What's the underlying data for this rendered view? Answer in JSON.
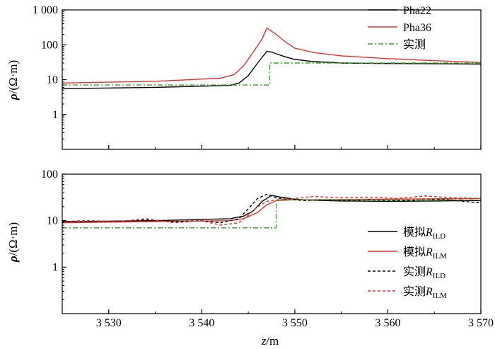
{
  "chart_data": [
    {
      "type": "line",
      "ylabel": "ρ/(Ω·m)",
      "yscale": "log",
      "ylim": [
        0.1,
        1000
      ],
      "yticks": [
        1,
        10,
        100,
        1000
      ],
      "ytick_labels": [
        "1",
        "10",
        "100",
        "1 000"
      ],
      "xlim": [
        3525,
        3570
      ],
      "legend_position": "top-right",
      "series": [
        {
          "name": "Pha22",
          "color": "#000000",
          "dash": "solid",
          "x": [
            3525,
            3535,
            3543,
            3544,
            3545,
            3546,
            3547,
            3547.5,
            3548,
            3549,
            3550,
            3552,
            3555,
            3560,
            3565,
            3570
          ],
          "y": [
            5.5,
            6,
            6.8,
            8,
            13,
            30,
            65,
            62,
            55,
            45,
            38,
            33,
            30,
            29,
            28.5,
            28
          ]
        },
        {
          "name": "Pha36",
          "color": "#e8312f",
          "dash": "solid",
          "x": [
            3525,
            3535,
            3542,
            3543.5,
            3544.5,
            3545.5,
            3546.5,
            3547,
            3548,
            3549,
            3550,
            3552,
            3555,
            3560,
            3565,
            3570
          ],
          "y": [
            8,
            9,
            11,
            14,
            25,
            60,
            150,
            300,
            200,
            120,
            80,
            60,
            48,
            40,
            35,
            31
          ]
        },
        {
          "name": "实测",
          "color": "#33aa22",
          "dash": "dashdot",
          "x": [
            3525,
            3547.3,
            3547.3,
            3570
          ],
          "y": [
            7,
            7,
            30,
            30
          ]
        }
      ]
    },
    {
      "type": "line",
      "xlabel": "z/m",
      "ylabel": "ρ/(Ω·m)",
      "yscale": "log",
      "ylim": [
        0.1,
        100
      ],
      "yticks": [
        1,
        10,
        100
      ],
      "ytick_labels": [
        "1",
        "10",
        "100"
      ],
      "xlim": [
        3525,
        3570
      ],
      "xticks": [
        3530,
        3540,
        3550,
        3560,
        3570
      ],
      "xtick_labels": [
        "3 530",
        "3 540",
        "3 550",
        "3 560",
        "3 570"
      ],
      "legend_position": "bottom-right",
      "series": [
        {
          "name_main": "模拟",
          "name_var": "R",
          "name_sub": "ILD",
          "color": "#000000",
          "dash": "solid",
          "x": [
            3525,
            3535,
            3543,
            3544.5,
            3545.5,
            3546.5,
            3547.5,
            3548.5,
            3550,
            3552,
            3555,
            3560,
            3565,
            3570
          ],
          "y": [
            9.5,
            10,
            11,
            12.5,
            16,
            26,
            35,
            32,
            29,
            27.5,
            26.5,
            26,
            26.5,
            27
          ]
        },
        {
          "name_main": "模拟",
          "name_var": "R",
          "name_sub": "ILM",
          "color": "#e8312f",
          "dash": "solid",
          "x": [
            3525,
            3535,
            3543,
            3544.5,
            3546,
            3547,
            3548,
            3550,
            3555,
            3560,
            3565,
            3570
          ],
          "y": [
            9,
            9.5,
            10,
            11,
            15,
            22,
            27,
            28,
            28.5,
            29,
            29.5,
            30
          ]
        },
        {
          "name_main": "实测",
          "name_var": "R",
          "name_sub": "ILD",
          "color": "#000000",
          "dash": "dashed",
          "x": [
            3525,
            3528,
            3531,
            3534,
            3537,
            3540,
            3542,
            3544,
            3545,
            3546,
            3547,
            3548,
            3549,
            3551,
            3553,
            3555,
            3558,
            3561,
            3564,
            3566,
            3568,
            3569,
            3570
          ],
          "y": [
            9.5,
            10,
            9.5,
            10.5,
            9.5,
            10,
            9,
            11,
            18,
            30,
            37,
            31,
            29,
            27,
            28,
            27,
            28,
            27,
            28,
            29,
            26,
            25,
            24
          ]
        },
        {
          "name_main": "实测",
          "name_var": "R",
          "name_sub": "ILM",
          "color": "#e8312f",
          "dash": "dashed",
          "x": [
            3525,
            3528,
            3531,
            3534,
            3537,
            3540,
            3542,
            3543,
            3544,
            3545,
            3546,
            3547,
            3548,
            3550,
            3552,
            3555,
            3558,
            3561,
            3564,
            3567,
            3570
          ],
          "y": [
            9,
            10,
            9.5,
            11,
            9,
            10,
            8,
            8.5,
            9,
            13,
            20,
            26,
            28,
            30,
            33,
            31,
            32,
            30,
            34,
            31,
            30
          ]
        },
        {
          "name": "",
          "color": "#33aa22",
          "dash": "dashdot",
          "x": [
            3525,
            3548,
            3548,
            3570
          ],
          "y": [
            7,
            7,
            28,
            28
          ]
        }
      ]
    }
  ]
}
